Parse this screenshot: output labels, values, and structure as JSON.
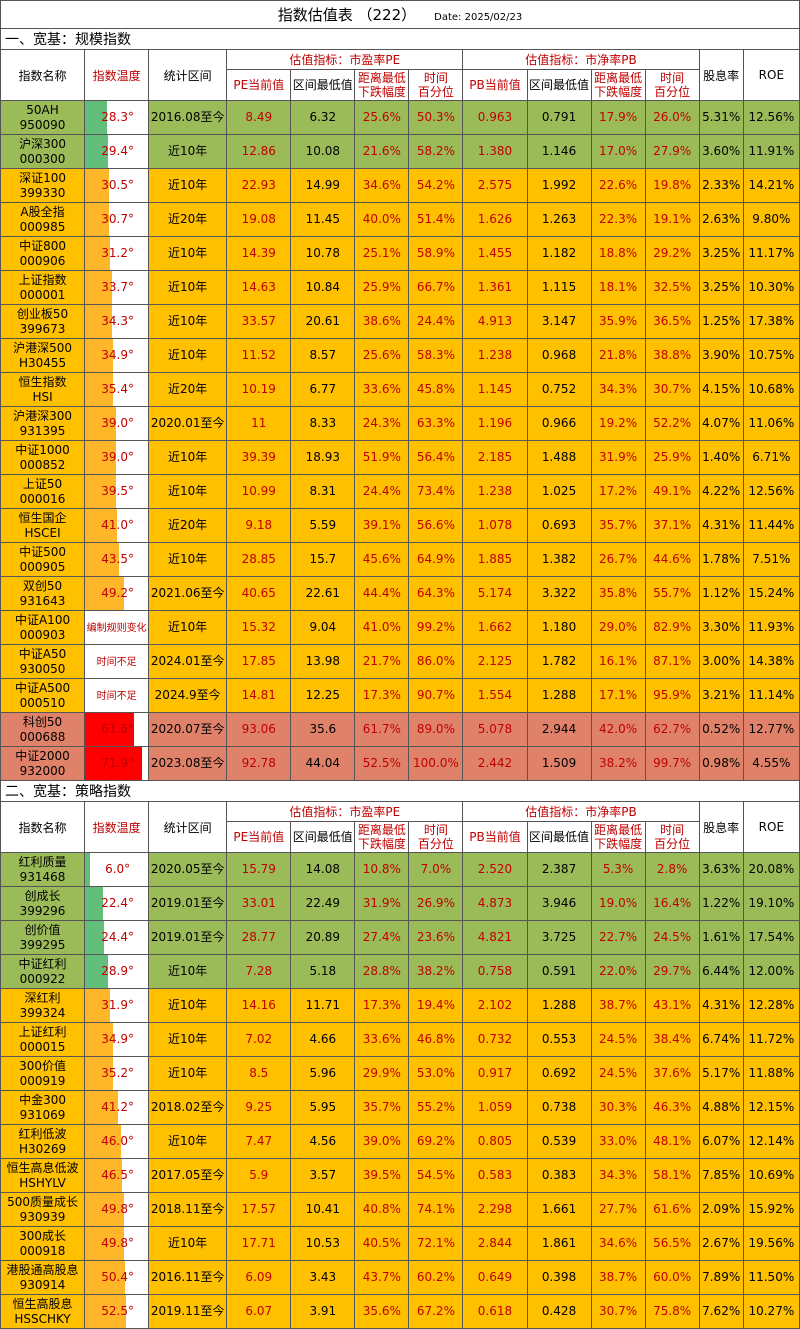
{
  "title": "指数估值表 （222）",
  "date": "Date:  2025/02/23",
  "colors": {
    "green": "#9bbb59",
    "orange": "#ffc000",
    "salmon": "#e0826a",
    "bar_green": "#63be7b",
    "bar_orange": "#ffb628",
    "bar_red": "#ff0000"
  },
  "headers": {
    "name": "指数名称",
    "temp": "指数温度",
    "range": "统计区间",
    "pe_group": "估值指标：市盈率PE",
    "pb_group": "估值指标：市净率PB",
    "pe_cur": "PE当前值",
    "pe_min": "区间最低值",
    "pe_drop": "距离最低\n下跌幅度",
    "pe_pct": "时间\n百分位",
    "pb_cur": "PB当前值",
    "pb_min": "区间最低值",
    "pb_drop": "距离最低\n下跌幅度",
    "pb_pct": "时间\n百分位",
    "div": "股息率",
    "roe": "ROE"
  },
  "sections": [
    {
      "title": "一、宽基：规模指数",
      "rows": [
        {
          "n1": "50AH",
          "n2": "950090",
          "temp": "28.3°",
          "level": 28.3,
          "range": "2016.08至今",
          "pe": "8.49",
          "pe_min": "6.32",
          "pe_drop": "25.6%",
          "pe_pct": "50.3%",
          "pb": "0.963",
          "pb_min": "0.791",
          "pb_drop": "17.9%",
          "pb_pct": "26.0%",
          "div": "5.31%",
          "roe": "12.56%",
          "color": "green"
        },
        {
          "n1": "沪深300",
          "n2": "000300",
          "temp": "29.4°",
          "level": 29.4,
          "range": "近10年",
          "pe": "12.86",
          "pe_min": "10.08",
          "pe_drop": "21.6%",
          "pe_pct": "58.2%",
          "pb": "1.380",
          "pb_min": "1.146",
          "pb_drop": "17.0%",
          "pb_pct": "27.9%",
          "div": "3.60%",
          "roe": "11.91%",
          "color": "green"
        },
        {
          "n1": "深证100",
          "n2": "399330",
          "temp": "30.5°",
          "level": 30.5,
          "range": "近10年",
          "pe": "22.93",
          "pe_min": "14.99",
          "pe_drop": "34.6%",
          "pe_pct": "54.2%",
          "pb": "2.575",
          "pb_min": "1.992",
          "pb_drop": "22.6%",
          "pb_pct": "19.8%",
          "div": "2.33%",
          "roe": "14.21%",
          "color": "orange"
        },
        {
          "n1": "A股全指",
          "n2": "000985",
          "temp": "30.7°",
          "level": 30.7,
          "range": "近20年",
          "pe": "19.08",
          "pe_min": "11.45",
          "pe_drop": "40.0%",
          "pe_pct": "51.4%",
          "pb": "1.626",
          "pb_min": "1.263",
          "pb_drop": "22.3%",
          "pb_pct": "19.1%",
          "div": "2.63%",
          "roe": "9.80%",
          "color": "orange"
        },
        {
          "n1": "中证800",
          "n2": "000906",
          "temp": "31.2°",
          "level": 31.2,
          "range": "近10年",
          "pe": "14.39",
          "pe_min": "10.78",
          "pe_drop": "25.1%",
          "pe_pct": "58.9%",
          "pb": "1.455",
          "pb_min": "1.182",
          "pb_drop": "18.8%",
          "pb_pct": "29.2%",
          "div": "3.25%",
          "roe": "11.17%",
          "color": "orange"
        },
        {
          "n1": "上证指数",
          "n2": "000001",
          "temp": "33.7°",
          "level": 33.7,
          "range": "近10年",
          "pe": "14.63",
          "pe_min": "10.84",
          "pe_drop": "25.9%",
          "pe_pct": "66.7%",
          "pb": "1.361",
          "pb_min": "1.115",
          "pb_drop": "18.1%",
          "pb_pct": "32.5%",
          "div": "3.25%",
          "roe": "10.30%",
          "color": "orange"
        },
        {
          "n1": "创业板50",
          "n2": "399673",
          "temp": "34.3°",
          "level": 34.3,
          "range": "近10年",
          "pe": "33.57",
          "pe_min": "20.61",
          "pe_drop": "38.6%",
          "pe_pct": "24.4%",
          "pb": "4.913",
          "pb_min": "3.147",
          "pb_drop": "35.9%",
          "pb_pct": "36.5%",
          "div": "1.25%",
          "roe": "17.38%",
          "color": "orange"
        },
        {
          "n1": "沪港深500",
          "n2": "H30455",
          "temp": "34.9°",
          "level": 34.9,
          "range": "近10年",
          "pe": "11.52",
          "pe_min": "8.57",
          "pe_drop": "25.6%",
          "pe_pct": "58.3%",
          "pb": "1.238",
          "pb_min": "0.968",
          "pb_drop": "21.8%",
          "pb_pct": "38.8%",
          "div": "3.90%",
          "roe": "10.75%",
          "color": "orange"
        },
        {
          "n1": "恒生指数",
          "n2": "HSI",
          "temp": "35.4°",
          "level": 35.4,
          "range": "近20年",
          "pe": "10.19",
          "pe_min": "6.77",
          "pe_drop": "33.6%",
          "pe_pct": "45.8%",
          "pb": "1.145",
          "pb_min": "0.752",
          "pb_drop": "34.3%",
          "pb_pct": "30.7%",
          "div": "4.15%",
          "roe": "10.68%",
          "color": "orange"
        },
        {
          "n1": "沪港深300",
          "n2": "931395",
          "temp": "39.0°",
          "level": 39.0,
          "range": "2020.01至今",
          "pe": "11",
          "pe_min": "8.33",
          "pe_drop": "24.3%",
          "pe_pct": "63.3%",
          "pb": "1.196",
          "pb_min": "0.966",
          "pb_drop": "19.2%",
          "pb_pct": "52.2%",
          "div": "4.07%",
          "roe": "11.06%",
          "color": "orange"
        },
        {
          "n1": "中证1000",
          "n2": "000852",
          "temp": "39.0°",
          "level": 39.0,
          "range": "近10年",
          "pe": "39.39",
          "pe_min": "18.93",
          "pe_drop": "51.9%",
          "pe_pct": "56.4%",
          "pb": "2.185",
          "pb_min": "1.488",
          "pb_drop": "31.9%",
          "pb_pct": "25.9%",
          "div": "1.40%",
          "roe": "6.71%",
          "color": "orange"
        },
        {
          "n1": "上证50",
          "n2": "000016",
          "temp": "39.5°",
          "level": 39.5,
          "range": "近10年",
          "pe": "10.99",
          "pe_min": "8.31",
          "pe_drop": "24.4%",
          "pe_pct": "73.4%",
          "pb": "1.238",
          "pb_min": "1.025",
          "pb_drop": "17.2%",
          "pb_pct": "49.1%",
          "div": "4.22%",
          "roe": "12.56%",
          "color": "orange"
        },
        {
          "n1": "恒生国企",
          "n2": "HSCEI",
          "temp": "41.0°",
          "level": 41.0,
          "range": "近20年",
          "pe": "9.18",
          "pe_min": "5.59",
          "pe_drop": "39.1%",
          "pe_pct": "56.6%",
          "pb": "1.078",
          "pb_min": "0.693",
          "pb_drop": "35.7%",
          "pb_pct": "37.1%",
          "div": "4.31%",
          "roe": "11.44%",
          "color": "orange"
        },
        {
          "n1": "中证500",
          "n2": "000905",
          "temp": "43.5°",
          "level": 43.5,
          "range": "近10年",
          "pe": "28.85",
          "pe_min": "15.7",
          "pe_drop": "45.6%",
          "pe_pct": "64.9%",
          "pb": "1.885",
          "pb_min": "1.382",
          "pb_drop": "26.7%",
          "pb_pct": "44.6%",
          "div": "1.78%",
          "roe": "7.51%",
          "color": "orange"
        },
        {
          "n1": "双创50",
          "n2": "931643",
          "temp": "49.2°",
          "level": 49.2,
          "range": "2021.06至今",
          "pe": "40.65",
          "pe_min": "22.61",
          "pe_drop": "44.4%",
          "pe_pct": "64.3%",
          "pb": "5.174",
          "pb_min": "3.322",
          "pb_drop": "35.8%",
          "pb_pct": "55.7%",
          "div": "1.12%",
          "roe": "15.24%",
          "color": "orange"
        },
        {
          "n1": "中证A100",
          "n2": "000903",
          "temp": "",
          "note": "编制规则变化",
          "range": "近10年",
          "pe": "15.32",
          "pe_min": "9.04",
          "pe_drop": "41.0%",
          "pe_pct": "99.2%",
          "pb": "1.662",
          "pb_min": "1.180",
          "pb_drop": "29.0%",
          "pb_pct": "82.9%",
          "div": "3.30%",
          "roe": "11.93%",
          "color": "orange"
        },
        {
          "n1": "中证A50",
          "n2": "930050",
          "temp": "",
          "note": "时间不足",
          "range": "2024.01至今",
          "pe": "17.85",
          "pe_min": "13.98",
          "pe_drop": "21.7%",
          "pe_pct": "86.0%",
          "pb": "2.125",
          "pb_min": "1.782",
          "pb_drop": "16.1%",
          "pb_pct": "87.1%",
          "div": "3.00%",
          "roe": "14.38%",
          "color": "orange"
        },
        {
          "n1": "中证A500",
          "n2": "000510",
          "temp": "",
          "note": "时间不足",
          "range": "2024.9至今",
          "pe": "14.81",
          "pe_min": "12.25",
          "pe_drop": "17.3%",
          "pe_pct": "90.7%",
          "pb": "1.554",
          "pb_min": "1.288",
          "pb_drop": "17.1%",
          "pb_pct": "95.9%",
          "div": "3.21%",
          "roe": "11.14%",
          "color": "orange"
        },
        {
          "n1": "科创50",
          "n2": "000688",
          "temp": "61.6°",
          "level": 61.6,
          "range": "2020.07至今",
          "pe": "93.06",
          "pe_min": "35.6",
          "pe_drop": "61.7%",
          "pe_pct": "89.0%",
          "pb": "5.078",
          "pb_min": "2.944",
          "pb_drop": "42.0%",
          "pb_pct": "62.7%",
          "div": "0.52%",
          "roe": "12.77%",
          "color": "salmon"
        },
        {
          "n1": "中证2000",
          "n2": "932000",
          "temp": "71.9°",
          "level": 71.9,
          "range": "2023.08至今",
          "pe": "92.78",
          "pe_min": "44.04",
          "pe_drop": "52.5%",
          "pe_pct": "100.0%",
          "pb": "2.442",
          "pb_min": "1.509",
          "pb_drop": "38.2%",
          "pb_pct": "99.7%",
          "div": "0.98%",
          "roe": "4.55%",
          "color": "salmon"
        }
      ]
    },
    {
      "title": "二、宽基：策略指数",
      "rows": [
        {
          "n1": "红利质量",
          "n2": "931468",
          "temp": "6.0°",
          "level": 6.0,
          "range": "2020.05至今",
          "pe": "15.79",
          "pe_min": "14.08",
          "pe_drop": "10.8%",
          "pe_pct": "7.0%",
          "pb": "2.520",
          "pb_min": "2.387",
          "pb_drop": "5.3%",
          "pb_pct": "2.8%",
          "div": "3.63%",
          "roe": "20.08%",
          "color": "green"
        },
        {
          "n1": "创成长",
          "n2": "399296",
          "temp": "22.4°",
          "level": 22.4,
          "range": "2019.01至今",
          "pe": "33.01",
          "pe_min": "22.49",
          "pe_drop": "31.9%",
          "pe_pct": "26.9%",
          "pb": "4.873",
          "pb_min": "3.946",
          "pb_drop": "19.0%",
          "pb_pct": "16.4%",
          "div": "1.22%",
          "roe": "19.10%",
          "color": "green"
        },
        {
          "n1": "创价值",
          "n2": "399295",
          "temp": "24.4°",
          "level": 24.4,
          "range": "2019.01至今",
          "pe": "28.77",
          "pe_min": "20.89",
          "pe_drop": "27.4%",
          "pe_pct": "23.6%",
          "pb": "4.821",
          "pb_min": "3.725",
          "pb_drop": "22.7%",
          "pb_pct": "24.5%",
          "div": "1.61%",
          "roe": "17.54%",
          "color": "green"
        },
        {
          "n1": "中证红利",
          "n2": "000922",
          "temp": "28.9°",
          "level": 28.9,
          "range": "近10年",
          "pe": "7.28",
          "pe_min": "5.18",
          "pe_drop": "28.8%",
          "pe_pct": "38.2%",
          "pb": "0.758",
          "pb_min": "0.591",
          "pb_drop": "22.0%",
          "pb_pct": "29.7%",
          "div": "6.44%",
          "roe": "12.00%",
          "color": "green"
        },
        {
          "n1": "深红利",
          "n2": "399324",
          "temp": "31.9°",
          "level": 31.9,
          "range": "近10年",
          "pe": "14.16",
          "pe_min": "11.71",
          "pe_drop": "17.3%",
          "pe_pct": "19.4%",
          "pb": "2.102",
          "pb_min": "1.288",
          "pb_drop": "38.7%",
          "pb_pct": "43.1%",
          "div": "4.31%",
          "roe": "12.28%",
          "color": "orange"
        },
        {
          "n1": "上证红利",
          "n2": "000015",
          "temp": "34.9°",
          "level": 34.9,
          "range": "近10年",
          "pe": "7.02",
          "pe_min": "4.66",
          "pe_drop": "33.6%",
          "pe_pct": "46.8%",
          "pb": "0.732",
          "pb_min": "0.553",
          "pb_drop": "24.5%",
          "pb_pct": "38.4%",
          "div": "6.74%",
          "roe": "11.72%",
          "color": "orange"
        },
        {
          "n1": "300价值",
          "n2": "000919",
          "temp": "35.2°",
          "level": 35.2,
          "range": "近10年",
          "pe": "8.5",
          "pe_min": "5.96",
          "pe_drop": "29.9%",
          "pe_pct": "53.0%",
          "pb": "0.917",
          "pb_min": "0.692",
          "pb_drop": "24.5%",
          "pb_pct": "37.6%",
          "div": "5.17%",
          "roe": "11.88%",
          "color": "orange"
        },
        {
          "n1": "中金300",
          "n2": "931069",
          "temp": "41.2°",
          "level": 41.2,
          "range": "2018.02至今",
          "pe": "9.25",
          "pe_min": "5.95",
          "pe_drop": "35.7%",
          "pe_pct": "55.2%",
          "pb": "1.059",
          "pb_min": "0.738",
          "pb_drop": "30.3%",
          "pb_pct": "46.3%",
          "div": "4.88%",
          "roe": "12.15%",
          "color": "orange"
        },
        {
          "n1": "红利低波",
          "n2": "H30269",
          "temp": "46.0°",
          "level": 46.0,
          "range": "近10年",
          "pe": "7.47",
          "pe_min": "4.56",
          "pe_drop": "39.0%",
          "pe_pct": "69.2%",
          "pb": "0.805",
          "pb_min": "0.539",
          "pb_drop": "33.0%",
          "pb_pct": "48.1%",
          "div": "6.07%",
          "roe": "12.14%",
          "color": "orange"
        },
        {
          "n1": "恒生高息低波",
          "n2": "HSHYLV",
          "temp": "46.5°",
          "level": 46.5,
          "range": "2017.05至今",
          "pe": "5.9",
          "pe_min": "3.57",
          "pe_drop": "39.5%",
          "pe_pct": "54.5%",
          "pb": "0.583",
          "pb_min": "0.383",
          "pb_drop": "34.3%",
          "pb_pct": "58.1%",
          "div": "7.85%",
          "roe": "10.69%",
          "color": "orange"
        },
        {
          "n1": "500质量成长",
          "n2": "930939",
          "temp": "49.8°",
          "level": 49.8,
          "range": "2018.11至今",
          "pe": "17.57",
          "pe_min": "10.41",
          "pe_drop": "40.8%",
          "pe_pct": "74.1%",
          "pb": "2.298",
          "pb_min": "1.661",
          "pb_drop": "27.7%",
          "pb_pct": "61.6%",
          "div": "2.09%",
          "roe": "15.92%",
          "color": "orange"
        },
        {
          "n1": "300成长",
          "n2": "000918",
          "temp": "49.8°",
          "level": 49.8,
          "range": "近10年",
          "pe": "17.71",
          "pe_min": "10.53",
          "pe_drop": "40.5%",
          "pe_pct": "72.1%",
          "pb": "2.844",
          "pb_min": "1.861",
          "pb_drop": "34.6%",
          "pb_pct": "56.5%",
          "div": "2.67%",
          "roe": "19.56%",
          "color": "orange"
        },
        {
          "n1": "港股通高股息",
          "n2": "930914",
          "temp": "50.4°",
          "level": 50.4,
          "range": "2016.11至今",
          "pe": "6.09",
          "pe_min": "3.43",
          "pe_drop": "43.7%",
          "pe_pct": "60.2%",
          "pb": "0.649",
          "pb_min": "0.398",
          "pb_drop": "38.7%",
          "pb_pct": "60.0%",
          "div": "7.89%",
          "roe": "11.50%",
          "color": "orange"
        },
        {
          "n1": "恒生高股息",
          "n2": "HSSCHKY",
          "temp": "52.5°",
          "level": 52.5,
          "range": "2019.11至今",
          "pe": "6.07",
          "pe_min": "3.91",
          "pe_drop": "35.6%",
          "pe_pct": "67.2%",
          "pb": "0.618",
          "pb_min": "0.428",
          "pb_drop": "30.7%",
          "pb_pct": "75.8%",
          "div": "7.62%",
          "roe": "10.27%",
          "color": "orange"
        }
      ]
    }
  ]
}
